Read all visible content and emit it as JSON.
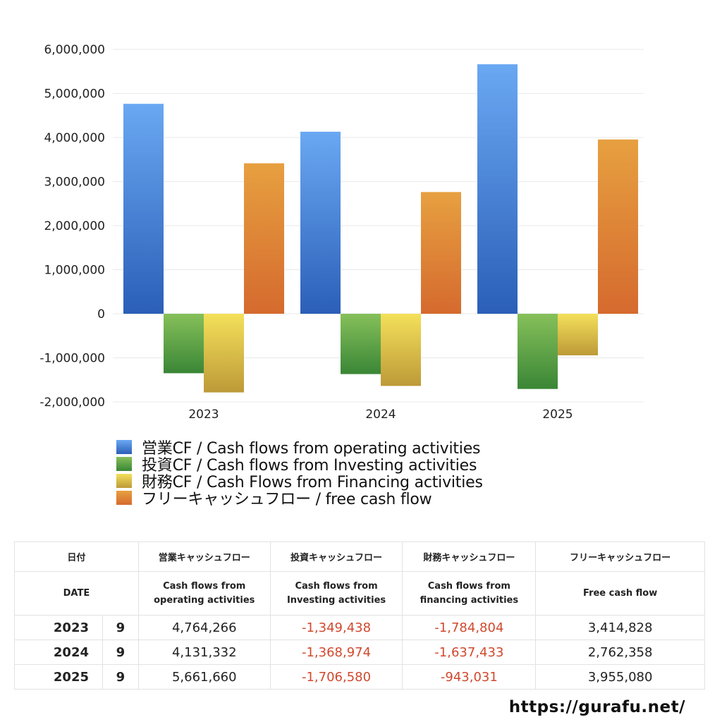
{
  "chart_data": {
    "type": "bar",
    "title": "",
    "xlabel": "",
    "ylabel": "",
    "categories": [
      "2023",
      "2024",
      "2025"
    ],
    "series": [
      {
        "name": "営業CF / Cash flows from operating activities",
        "values": [
          4764266,
          4131332,
          5661660
        ],
        "color_top": "#6aa8f2",
        "color_bottom": "#2b5fb8"
      },
      {
        "name": "投資CF / Cash flows from Investing activities",
        "values": [
          -1349438,
          -1368974,
          -1706580
        ],
        "color_top": "#86c05a",
        "color_bottom": "#3a8636"
      },
      {
        "name": "財務CF / Cash Flows from Financing activities",
        "values": [
          -1784804,
          -1637433,
          -943031
        ],
        "color_top": "#f4e05a",
        "color_bottom": "#bd9a38"
      },
      {
        "name": "フリーキャッシュフロー / free cash flow",
        "values": [
          3414828,
          2762358,
          3955080
        ],
        "color_top": "#e7a040",
        "color_bottom": "#d56a2e"
      }
    ],
    "ylim": [
      -2000000,
      6000000
    ],
    "yticks": [
      "6,000,000",
      "5,000,000",
      "4,000,000",
      "3,000,000",
      "2,000,000",
      "1,000,000",
      "0",
      "-1,000,000",
      "-2,000,000"
    ],
    "ytick_values": [
      6000000,
      5000000,
      4000000,
      3000000,
      2000000,
      1000000,
      0,
      -1000000,
      -2000000
    ],
    "grid": true,
    "legend_position": "bottom-left"
  },
  "legend": [
    {
      "label": "営業CF / Cash flows from operating activities",
      "color": "#3d7fd8"
    },
    {
      "label": "投資CF / Cash flows from Investing activities",
      "color": "#5aa348"
    },
    {
      "label": "財務CF / Cash Flows from Financing activities",
      "color": "#dcc34a"
    },
    {
      "label": "フリーキャッシュフロー / free cash flow",
      "color": "#de8236"
    }
  ],
  "table": {
    "header_ja": {
      "date": "日付",
      "operating": "営業キャッシュフロー",
      "investing": "投資キャッシュフロー",
      "financing": "財務キャッシュフロー",
      "free": "フリーキャッシュフロー"
    },
    "header_en": {
      "date": "DATE",
      "operating_1": "Cash flows from",
      "operating_2": "operating activities",
      "investing_1": "Cash flows from",
      "investing_2": "Investing activities",
      "financing_1": "Cash flows from",
      "financing_2": "financing activities",
      "free": "Free cash flow"
    },
    "rows": [
      {
        "year": "2023",
        "month": "9",
        "operating": "4,764,266",
        "investing": "-1,349,438",
        "financing": "-1,784,804",
        "free": "3,414,828"
      },
      {
        "year": "2024",
        "month": "9",
        "operating": "4,131,332",
        "investing": "-1,368,974",
        "financing": "-1,637,433",
        "free": "2,762,358"
      },
      {
        "year": "2025",
        "month": "9",
        "operating": "5,661,660",
        "investing": "-1,706,580",
        "financing": "-943,031",
        "free": "3,955,080"
      }
    ]
  },
  "footer": {
    "url": "https://gurafu.net/"
  }
}
